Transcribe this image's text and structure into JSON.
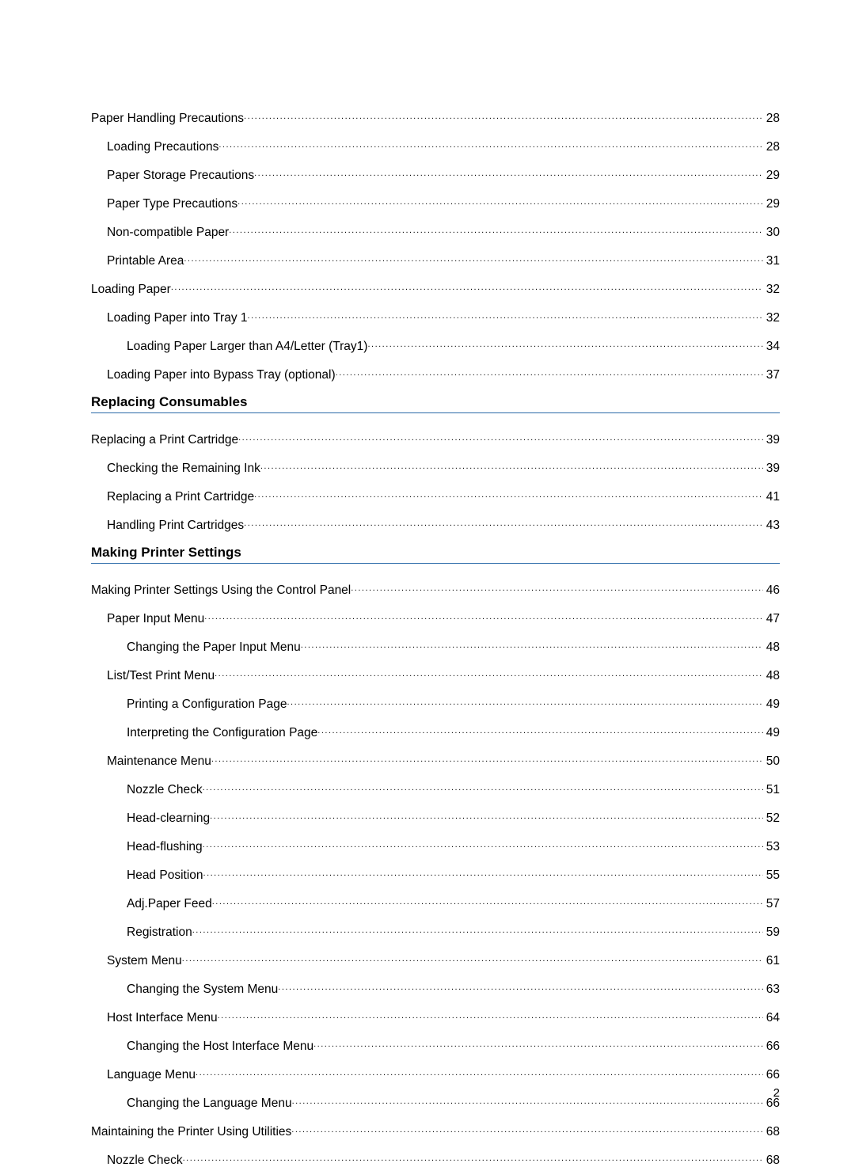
{
  "pageNumber": "2",
  "entries": [
    {
      "level": 0,
      "label": "Paper Handling Precautions",
      "page": "28"
    },
    {
      "level": 1,
      "label": "Loading Precautions",
      "page": "28"
    },
    {
      "level": 1,
      "label": "Paper Storage Precautions",
      "page": "29"
    },
    {
      "level": 1,
      "label": "Paper Type Precautions",
      "page": "29"
    },
    {
      "level": 1,
      "label": "Non-compatible Paper",
      "page": "30"
    },
    {
      "level": 1,
      "label": "Printable Area",
      "page": "31"
    },
    {
      "level": 0,
      "label": "Loading Paper",
      "page": "32"
    },
    {
      "level": 1,
      "label": "Loading Paper into Tray 1",
      "page": "32"
    },
    {
      "level": 2,
      "label": "Loading Paper Larger than A4/Letter (Tray1)",
      "page": "34"
    },
    {
      "level": 1,
      "label": "Loading Paper into Bypass Tray (optional)",
      "page": "37"
    },
    {
      "section": "Replacing Consumables"
    },
    {
      "level": 0,
      "label": "Replacing a Print Cartridge",
      "page": "39"
    },
    {
      "level": 1,
      "label": "Checking the Remaining Ink",
      "page": "39"
    },
    {
      "level": 1,
      "label": "Replacing a Print Cartridge",
      "page": "41"
    },
    {
      "level": 1,
      "label": "Handling Print Cartridges",
      "page": "43"
    },
    {
      "section": "Making Printer Settings"
    },
    {
      "level": 0,
      "label": "Making Printer Settings Using the Control Panel",
      "page": "46"
    },
    {
      "level": 1,
      "label": "Paper Input Menu",
      "page": "47"
    },
    {
      "level": 2,
      "label": "Changing the Paper Input Menu",
      "page": "48"
    },
    {
      "level": 1,
      "label": "List/Test Print Menu",
      "page": "48"
    },
    {
      "level": 2,
      "label": "Printing a Configuration Page",
      "page": "49"
    },
    {
      "level": 2,
      "label": "Interpreting the Configuration Page",
      "page": "49"
    },
    {
      "level": 1,
      "label": "Maintenance Menu",
      "page": "50"
    },
    {
      "level": 2,
      "label": "Nozzle Check",
      "page": "51"
    },
    {
      "level": 2,
      "label": "Head-clearning",
      "page": "52"
    },
    {
      "level": 2,
      "label": "Head-flushing",
      "page": "53"
    },
    {
      "level": 2,
      "label": "Head Position",
      "page": "55"
    },
    {
      "level": 2,
      "label": "Adj.Paper Feed",
      "page": "57"
    },
    {
      "level": 2,
      "label": "Registration",
      "page": "59"
    },
    {
      "level": 1,
      "label": "System Menu",
      "page": "61"
    },
    {
      "level": 2,
      "label": "Changing the System Menu",
      "page": "63"
    },
    {
      "level": 1,
      "label": "Host Interface Menu",
      "page": "64"
    },
    {
      "level": 2,
      "label": "Changing the Host Interface Menu",
      "page": "66"
    },
    {
      "level": 1,
      "label": "Language Menu",
      "page": "66"
    },
    {
      "level": 2,
      "label": "Changing the Language Menu",
      "page": "66"
    },
    {
      "level": 0,
      "label": "Maintaining the Printer Using Utilities",
      "page": "68"
    },
    {
      "level": 1,
      "label": "Nozzle Check",
      "page": "68"
    }
  ]
}
